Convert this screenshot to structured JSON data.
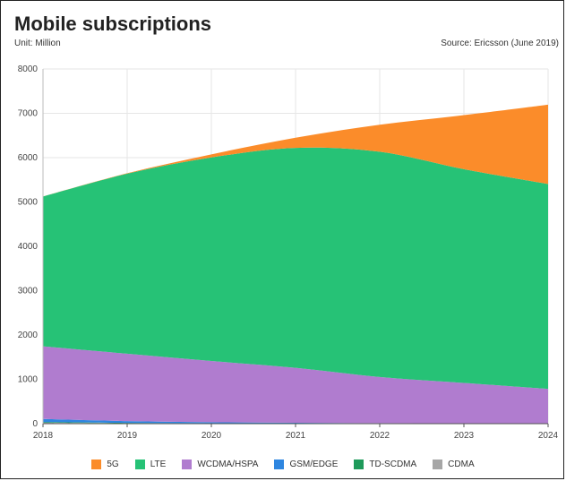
{
  "header": {
    "title": "Mobile subscriptions",
    "unit": "Unit: Million",
    "source": "Source: Ericsson (June 2019)"
  },
  "chart_data": {
    "type": "area",
    "stacked": true,
    "title": "Mobile subscriptions",
    "xlabel": "",
    "ylabel": "",
    "x": [
      2018,
      2019,
      2020,
      2021,
      2022,
      2023,
      2024
    ],
    "x_tick_labels": [
      "2018",
      "2019",
      "2020",
      "2021",
      "2022",
      "2023",
      "2024"
    ],
    "ylim": [
      0,
      8000
    ],
    "y_ticks": [
      0,
      1000,
      2000,
      3000,
      4000,
      5000,
      6000,
      7000,
      8000
    ],
    "y_tick_labels": [
      "0",
      "1000",
      "2000",
      "3000",
      "4000",
      "5000",
      "6000",
      "7000",
      "8000"
    ],
    "grid": true,
    "legend_position": "bottom",
    "series": [
      {
        "name": "CDMA",
        "color": "#a6a6a6",
        "values": [
          20,
          10,
          5,
          3,
          2,
          1,
          0
        ]
      },
      {
        "name": "TD-SCDMA",
        "color": "#1e9a5a",
        "values": [
          15,
          8,
          4,
          2,
          1,
          0,
          0
        ]
      },
      {
        "name": "GSM/EDGE",
        "color": "#2e86e0",
        "values": [
          70,
          40,
          25,
          15,
          10,
          8,
          5
        ]
      },
      {
        "name": "WCDMA/HSPA",
        "color": "#b07ccf",
        "values": [
          1640,
          1520,
          1380,
          1240,
          1040,
          910,
          780
        ]
      },
      {
        "name": "LTE",
        "color": "#26c276",
        "values": [
          3380,
          4060,
          4590,
          4960,
          5080,
          4820,
          4620
        ]
      },
      {
        "name": "5G",
        "color": "#fb8c2a",
        "values": [
          0,
          10,
          70,
          230,
          610,
          1220,
          1790
        ]
      }
    ],
    "legend_order": [
      "5G",
      "LTE",
      "WCDMA/HSPA",
      "GSM/EDGE",
      "TD-SCDMA",
      "CDMA"
    ]
  }
}
